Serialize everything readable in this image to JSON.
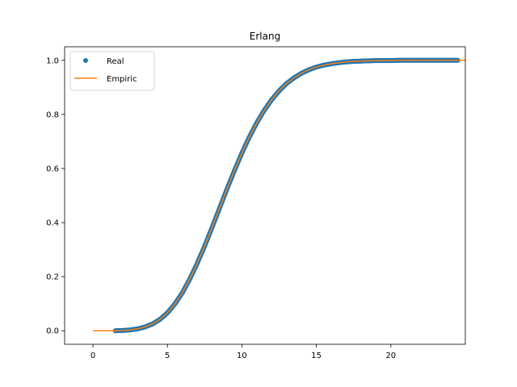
{
  "chart_data": {
    "type": "line",
    "title": "Erlang",
    "xlabel": "",
    "ylabel": "",
    "xlim": [
      -1.9,
      25
    ],
    "ylim": [
      -0.05,
      1.05
    ],
    "xticks": [
      0,
      5,
      10,
      15,
      20
    ],
    "yticks": [
      0.0,
      0.2,
      0.4,
      0.6,
      0.8,
      1.0
    ],
    "xtick_labels": [
      "0",
      "5",
      "10",
      "15",
      "20"
    ],
    "ytick_labels": [
      "0.0",
      "0.2",
      "0.4",
      "0.6",
      "0.8",
      "1.0"
    ],
    "grid": false,
    "legend_position": "top-left",
    "series": [
      {
        "name": "Real",
        "style": "markers",
        "color": "#1f77b4",
        "x": [
          1.5,
          2.0,
          2.5,
          3.0,
          3.5,
          4.0,
          4.5,
          5.0,
          5.5,
          6.0,
          6.5,
          7.0,
          7.5,
          8.0,
          8.5,
          9.0,
          9.5,
          10.0,
          10.5,
          11.0,
          11.5,
          12.0,
          12.5,
          13.0,
          13.5,
          14.0,
          14.5,
          15.0,
          15.5,
          16.0,
          16.5,
          17.0,
          17.5,
          18.0,
          18.5,
          19.0,
          19.5,
          20.0,
          20.5,
          21.0,
          21.5,
          22.0,
          22.5,
          23.0,
          23.5,
          24.0,
          24.5
        ],
        "y": [
          0.0,
          0.001,
          0.003,
          0.007,
          0.014,
          0.025,
          0.042,
          0.066,
          0.099,
          0.14,
          0.191,
          0.249,
          0.313,
          0.382,
          0.453,
          0.524,
          0.592,
          0.657,
          0.716,
          0.769,
          0.815,
          0.854,
          0.887,
          0.914,
          0.935,
          0.952,
          0.965,
          0.975,
          0.982,
          0.987,
          0.991,
          0.994,
          0.996,
          0.997,
          0.998,
          0.999,
          0.999,
          0.999,
          1.0,
          1.0,
          1.0,
          1.0,
          1.0,
          1.0,
          1.0,
          1.0,
          1.0
        ]
      },
      {
        "name": "Empiric",
        "style": "line",
        "color": "#ff7f0e",
        "x": [
          0,
          0.5,
          1.0,
          1.5,
          2.0,
          2.5,
          3.0,
          3.5,
          4.0,
          4.5,
          5.0,
          5.5,
          6.0,
          6.5,
          7.0,
          7.5,
          8.0,
          8.5,
          9.0,
          9.5,
          10.0,
          10.5,
          11.0,
          11.5,
          12.0,
          12.5,
          13.0,
          13.5,
          14.0,
          14.5,
          15.0,
          15.5,
          16.0,
          16.5,
          17.0,
          17.5,
          18.0,
          18.5,
          19.0,
          19.5,
          20.0,
          20.5,
          21.0,
          21.5,
          22.0,
          22.5,
          23.0,
          23.5,
          24.0,
          24.5,
          25.0
        ],
        "y": [
          0.0,
          0.0,
          0.0,
          0.0,
          0.001,
          0.003,
          0.007,
          0.014,
          0.025,
          0.042,
          0.066,
          0.099,
          0.14,
          0.191,
          0.249,
          0.313,
          0.382,
          0.453,
          0.524,
          0.592,
          0.657,
          0.716,
          0.769,
          0.815,
          0.854,
          0.887,
          0.914,
          0.935,
          0.952,
          0.965,
          0.975,
          0.982,
          0.987,
          0.991,
          0.994,
          0.996,
          0.997,
          0.998,
          0.999,
          0.999,
          0.999,
          1.0,
          1.0,
          1.0,
          1.0,
          1.0,
          1.0,
          1.0,
          1.0,
          1.0,
          1.0
        ]
      }
    ]
  }
}
